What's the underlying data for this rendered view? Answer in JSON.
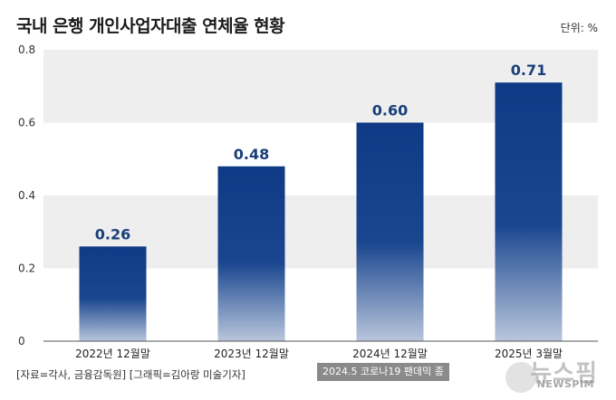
{
  "header": {
    "title": "국내 은행 개인사업자대출 연체율 현황",
    "unit": "단위: %"
  },
  "chart_data": {
    "type": "bar",
    "title": "국내 은행 개인사업자대출 연체율 현황",
    "categories": [
      "2022년 12월말",
      "2023년 12월말",
      "2024년 12월말",
      "2025년 3월말"
    ],
    "values": [
      0.26,
      0.48,
      0.6,
      0.71
    ],
    "value_labels": [
      "0.26",
      "0.48",
      "0.60",
      "0.71"
    ],
    "y_ticks": [
      "0",
      "0.2",
      "0.4",
      "0.6",
      "0.8"
    ],
    "y_tick_values": [
      0,
      0.2,
      0.4,
      0.6,
      0.8
    ],
    "ylim": [
      0,
      0.8
    ],
    "unit": "%",
    "bar_color": "#0f3a85",
    "band_color": "#eeeeee"
  },
  "footer": {
    "source": "[자료=각사, 금융감독원] [그래픽=김아랑 미술기자]",
    "note": "2024.5 코로나19 팬데믹 종",
    "logo_korean": "뉴스핌",
    "logo_english": "NEWSPIM"
  }
}
